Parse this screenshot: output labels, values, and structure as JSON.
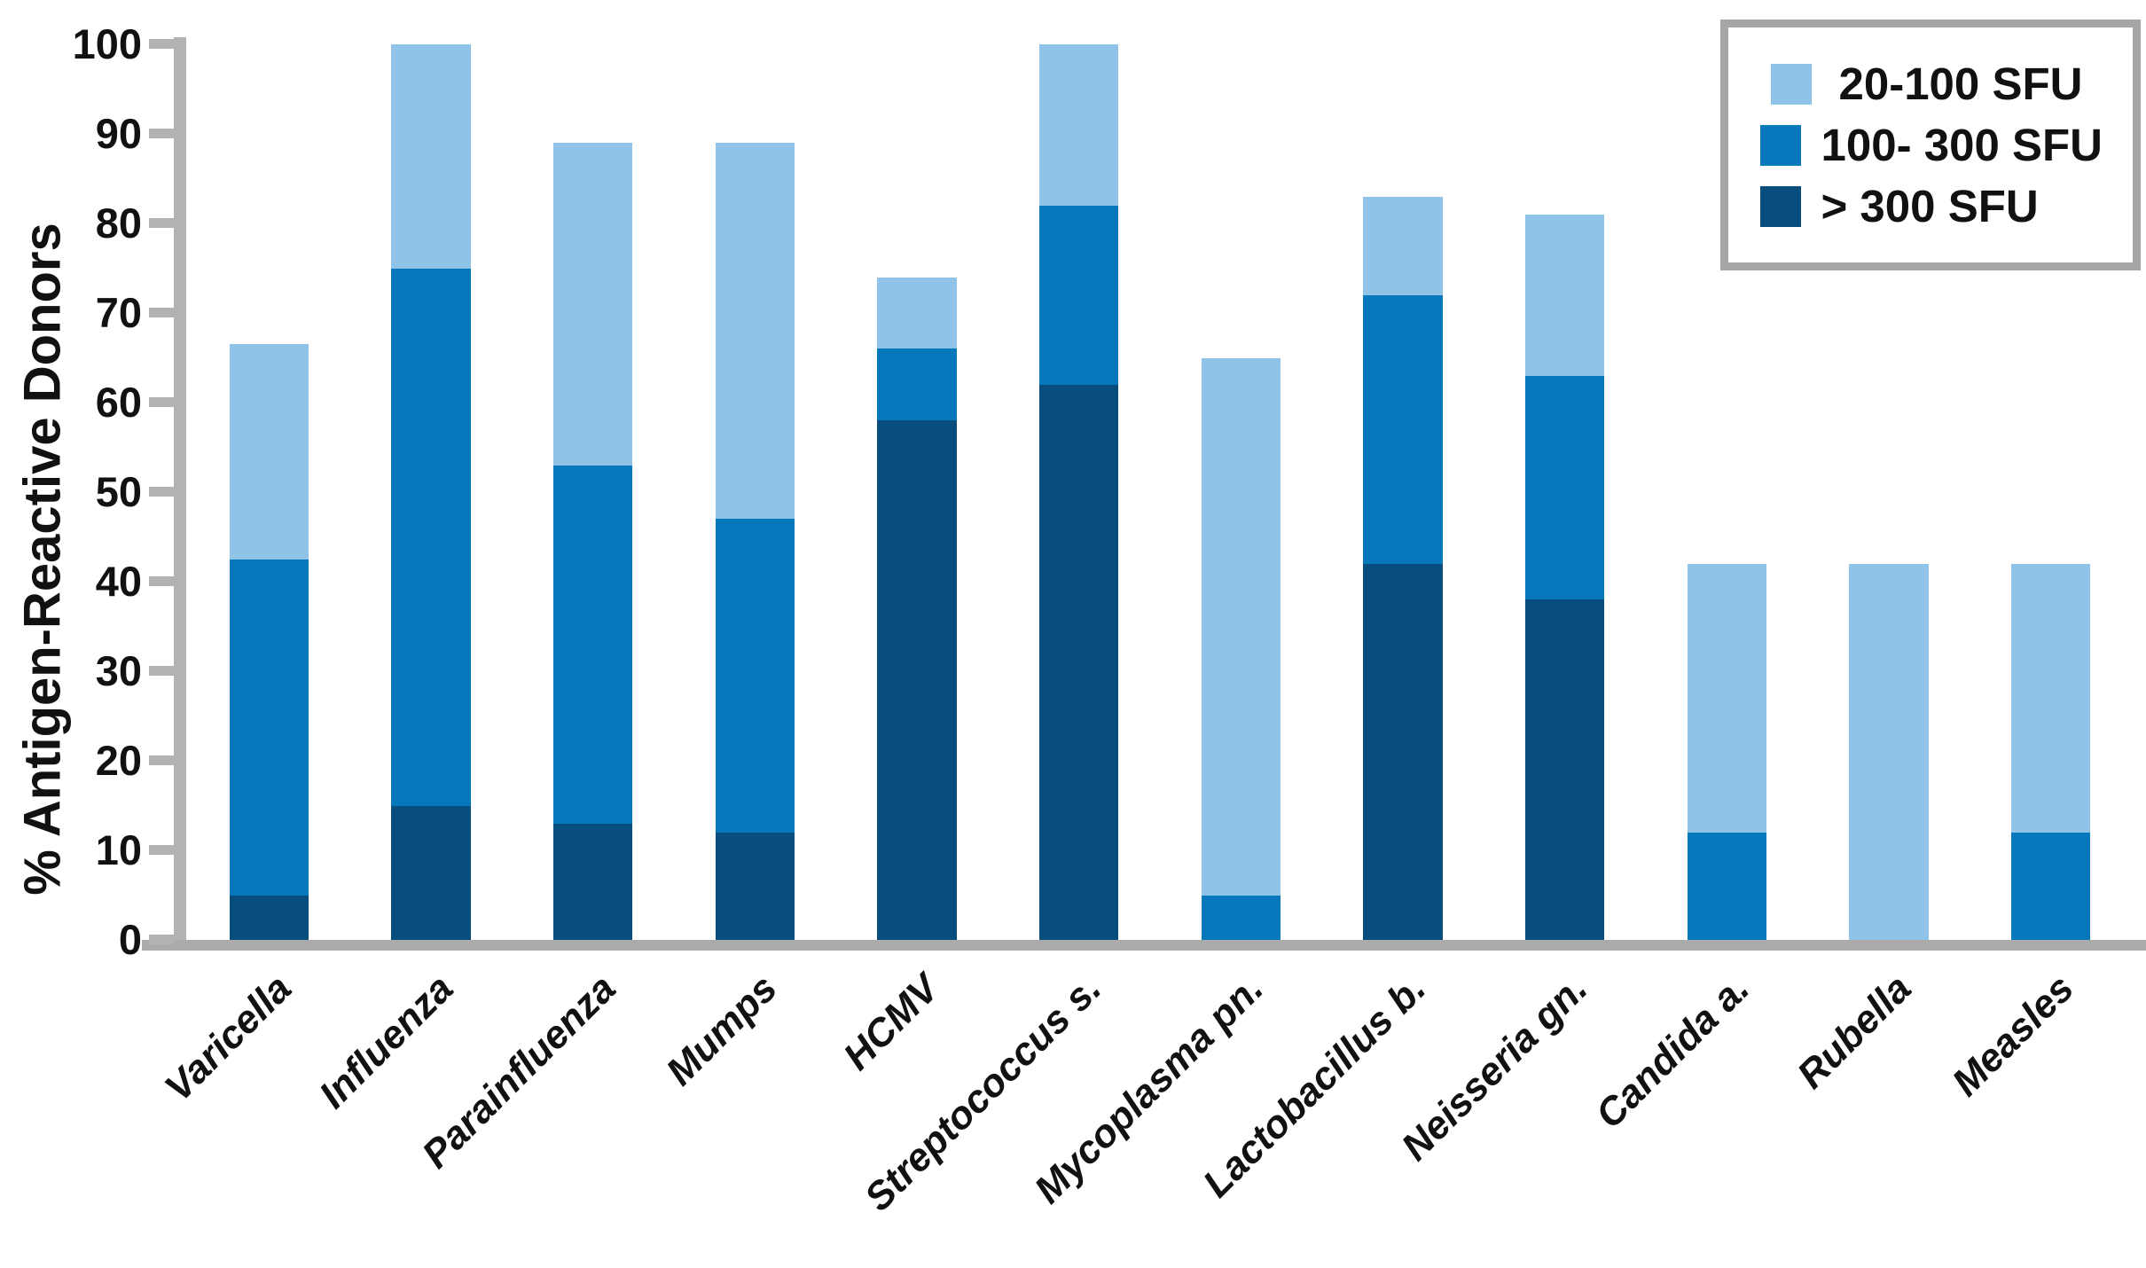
{
  "chart_data": {
    "type": "bar",
    "stacked": true,
    "title": "",
    "xlabel": "",
    "ylabel": "% Antigen-Reactive Donors",
    "ylim": [
      0,
      100
    ],
    "yticks": [
      0,
      10,
      20,
      30,
      40,
      50,
      60,
      70,
      80,
      90,
      100
    ],
    "grid": false,
    "legend_position": "top-right",
    "categories": [
      "Varicella",
      "Influenza",
      "Parainfluenza",
      "Mumps",
      "HCMV",
      "Streptococcus s.",
      "Mycoplasma pn.",
      "Lactobacillus b.",
      "Neisseria gn.",
      "Candida a.",
      "Rubella",
      "Measles"
    ],
    "series": [
      {
        "name": "> 300 SFU",
        "color": "#074E7C",
        "values": [
          5,
          15,
          13,
          12,
          58,
          62,
          0,
          42,
          38,
          0,
          0,
          0
        ]
      },
      {
        "name": "100- 300 SFU",
        "color": "#0778BC",
        "values": [
          37.5,
          60,
          40,
          35,
          8,
          20,
          5,
          30,
          25,
          12,
          0,
          12
        ]
      },
      {
        "name": "20-100 SFU",
        "color": "#8FC4E8",
        "values": [
          24,
          25,
          36,
          42,
          8,
          18,
          60,
          11,
          18,
          30,
          42,
          30
        ]
      }
    ],
    "stack_totals": [
      66.5,
      100,
      89,
      89,
      74,
      100,
      65,
      83,
      81,
      42,
      42,
      42
    ]
  },
  "legend": {
    "items": [
      {
        "label": "20-100 SFU",
        "color": "#8FC4E8"
      },
      {
        "label": "100- 300 SFU",
        "color": "#0778BC"
      },
      {
        "label": "> 300 SFU",
        "color": "#074E7C"
      }
    ]
  },
  "axis_colors": {
    "axis_line": "#b3b1b1",
    "baseline": "#ababab"
  }
}
